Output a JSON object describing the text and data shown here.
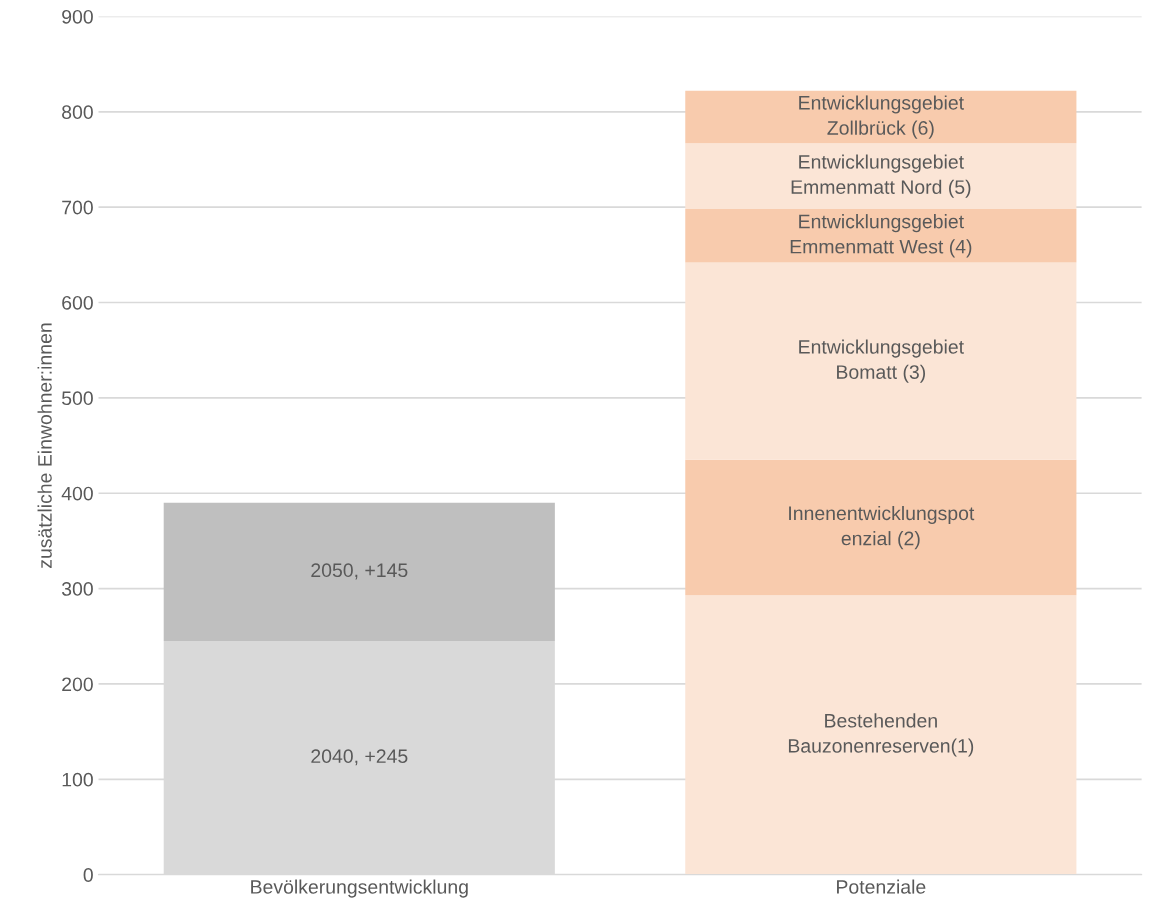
{
  "chart_data": {
    "type": "bar",
    "stacked": true,
    "ylabel": "zusätzliche Einwohner:innen",
    "categories": [
      "Bevölkerungsentwicklung",
      "Potenziale"
    ],
    "series": [
      {
        "name": "2040, +245",
        "color": "#d9d9d9",
        "values": [
          245,
          null
        ]
      },
      {
        "name": "2050, +145",
        "color": "#bfbfbf",
        "values": [
          145,
          null
        ]
      },
      {
        "name": "Bestehenden\nBauzonenreserven(1)",
        "color": "#fbe5d6",
        "values": [
          null,
          293
        ]
      },
      {
        "name": "Innenentwicklungspot\nenzial (2)",
        "color": "#f8cbad",
        "values": [
          null,
          142
        ]
      },
      {
        "name": "Entwicklungsgebiet\nBomatt (3)",
        "color": "#fbe5d6",
        "values": [
          null,
          207
        ]
      },
      {
        "name": "Entwicklungsgebiet\nEmmenmatt West (4)",
        "color": "#f8cbad",
        "values": [
          null,
          56
        ]
      },
      {
        "name": "Entwicklungsgebiet\nEmmenmatt Nord (5)",
        "color": "#fbe5d6",
        "values": [
          null,
          69
        ]
      },
      {
        "name": "Entwicklungsgebiet\nZollbrück (6)",
        "color": "#f8cbad",
        "values": [
          null,
          55
        ]
      }
    ],
    "ylim": [
      0,
      900
    ],
    "yticks": [
      0,
      100,
      200,
      300,
      400,
      500,
      600,
      700,
      800,
      900
    ],
    "grid": "y",
    "legend": false
  }
}
